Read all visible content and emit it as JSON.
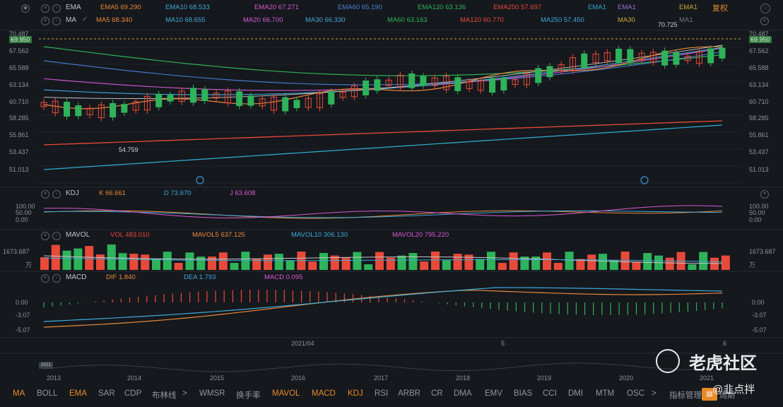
{
  "top_bar": {
    "mode_label": "复权",
    "ema_name": "EMA",
    "ma_name": "MA"
  },
  "ema_legend": [
    {
      "label": "EMA5",
      "value": "69.290",
      "color": "#e8883a"
    },
    {
      "label": "EMA10",
      "value": "68.533",
      "color": "#3fa9d8"
    },
    {
      "label": "EMA20",
      "value": "67.271",
      "color": "#d65ad0"
    },
    {
      "label": "EMA60",
      "value": "65.190",
      "color": "#4a7fd8"
    },
    {
      "label": "EMA120",
      "value": "63.136",
      "color": "#2fb35a"
    },
    {
      "label": "EMA250",
      "value": "57.697",
      "color": "#e84a3a"
    },
    {
      "label": "EMA1",
      "value": "",
      "color": "#2fa8c8"
    },
    {
      "label": "EMA1",
      "value": "",
      "color": "#9a6fd6"
    },
    {
      "label": "EMA1",
      "value": "",
      "color": "#c8a83a"
    }
  ],
  "ma_legend": [
    {
      "label": "MA5",
      "value": "68.340",
      "color": "#e8883a"
    },
    {
      "label": "MA10",
      "value": "68.655",
      "color": "#3fa9d8"
    },
    {
      "label": "MA20",
      "value": "66.700",
      "color": "#d65ad0"
    },
    {
      "label": "MA30",
      "value": "66.330",
      "color": "#3fa9d8"
    },
    {
      "label": "MA60",
      "value": "63.163",
      "color": "#2fb35a"
    },
    {
      "label": "MA120",
      "value": "60.770",
      "color": "#e84a3a"
    },
    {
      "label": "MA250",
      "value": "57.450",
      "color": "#3fa9d8"
    },
    {
      "label": "MA30",
      "value": "",
      "color": "#c8a83a"
    },
    {
      "label": "MA1",
      "value": "",
      "color": "#6f7880"
    }
  ],
  "price_axis": {
    "right_ticks": [
      "70.487",
      "69.950",
      "67.562",
      "65.588",
      "63.134",
      "60.710",
      "58.285",
      "55.861",
      "53.437",
      "51.013"
    ],
    "left_ticks": [
      "70.487",
      "69.950",
      "67.562",
      "65.588",
      "63.134",
      "60.710",
      "58.285",
      "55.861",
      "53.437",
      "51.013"
    ],
    "low_marker": "54.759",
    "high_marker": "70.725"
  },
  "kdj": {
    "name": "KDJ",
    "k": "K 66.661",
    "d": "D 73.670",
    "j": "J 63.608",
    "ticks": [
      "100.00",
      "50.00",
      "0.00"
    ],
    "ticks_left": [
      "100.00",
      "50.00",
      "0.00"
    ]
  },
  "mavol": {
    "name": "MAVOL",
    "vol": "VOL 483.010",
    "mavol5": "MAVOL5 637.125",
    "mavol10": "MAVOL10 306.130",
    "mavol20": "MAVOL20 795.220",
    "top_tick": "1673.687",
    "unit": "万"
  },
  "macd": {
    "name": "MACD",
    "dif": "DIF 1.840",
    "dea": "DEA 1.793",
    "macd": "MACD 0.095",
    "ticks": [
      "0.00",
      "-3.07",
      "-5.07"
    ],
    "ticks_left": [
      "0.00",
      "-3.07",
      "-5.07"
    ]
  },
  "time_axis": {
    "labels": [
      "2021/04",
      "5",
      "6"
    ],
    "range_badge": "2021",
    "years": [
      "2013",
      "2014",
      "2015",
      "2016",
      "2017",
      "2018",
      "2019",
      "2020",
      "2021"
    ]
  },
  "bottom_tabs": [
    "MA",
    "BOLL",
    "EMA",
    "SAR",
    "CDP",
    "布林线",
    ">",
    "WMSR",
    "换手率",
    "MAVOL",
    "MACD",
    "KDJ",
    "RSI",
    "ARBR",
    "CR",
    "DMA",
    "EMV",
    "BIAS",
    "CCI",
    "DMI",
    "MTM",
    "OSC",
    ">",
    "指标管理"
  ],
  "active_tabs": [
    "MA",
    "EMA",
    "MAVOL",
    "MACD",
    "KDJ"
  ],
  "right_tab": "周期",
  "watermark": {
    "title": "老虎社区",
    "author": "@韭点拌"
  }
}
